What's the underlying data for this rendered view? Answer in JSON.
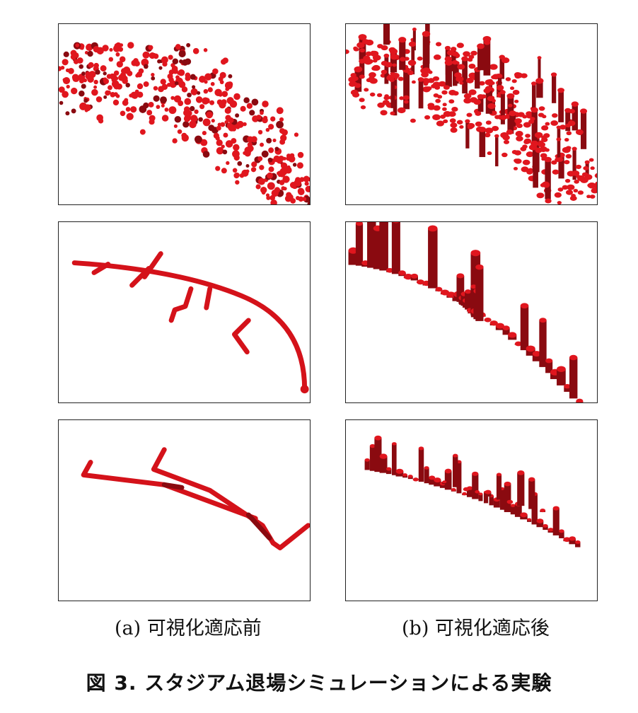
{
  "figure": {
    "caption": "図 3. スタジアム退場シミュレーションによる実験"
  },
  "columns": [
    {
      "caption": "(a) 可視化適応前"
    },
    {
      "caption": "(b) 可視化適応後"
    }
  ],
  "colors": {
    "marker": "#e0161e",
    "marker_dark": "#8a0a10",
    "frame": "#222222"
  }
}
